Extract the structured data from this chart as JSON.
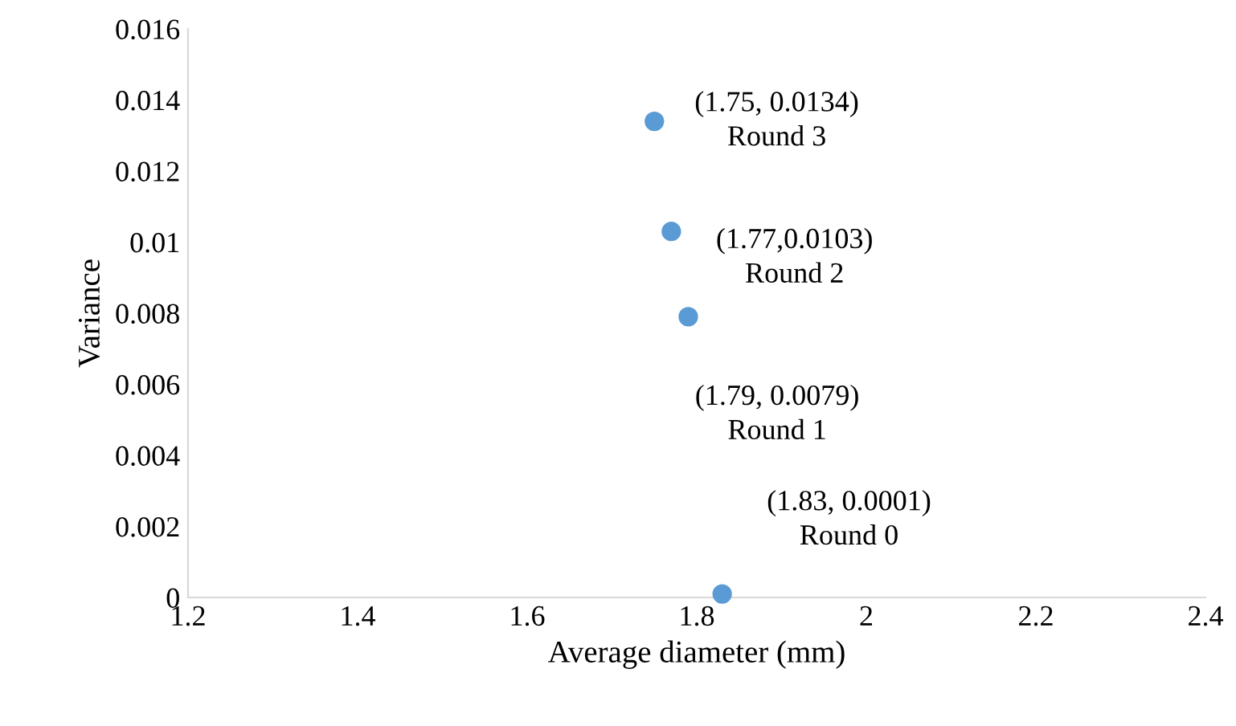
{
  "chart_data": {
    "type": "scatter",
    "xlabel": "Average diameter (mm)",
    "ylabel": "Variance",
    "x": [
      1.75,
      1.77,
      1.79,
      1.83
    ],
    "values": [
      0.0134,
      0.0103,
      0.0079,
      0.0001
    ],
    "color": "#5b9bd5",
    "marker": "circle",
    "grid": false,
    "legend": false,
    "xlim": [
      1.2,
      2.4
    ],
    "xticks": [
      1.2,
      1.4,
      1.6,
      1.8,
      {
        "value": 2,
        "label": "2"
      },
      2.2,
      2.4
    ],
    "ylim": [
      0,
      0.016
    ],
    "yticks": [
      {
        "value": 0,
        "label": "0"
      },
      0.002,
      0.004,
      0.006,
      0.008,
      {
        "value": 0.01,
        "label": "0.01"
      },
      0.012,
      0.014,
      0.016
    ],
    "annotations": [
      {
        "text": "(1.75, 0.0134)\nRound 3",
        "x": 1.75,
        "y": 0.0134
      },
      {
        "text": "(1.77,0.0103)\nRound 2",
        "x": 1.77,
        "y": 0.0103
      },
      {
        "text": "(1.79, 0.0079)\nRound 1",
        "x": 1.79,
        "y": 0.0079
      },
      {
        "text": "(1.83, 0.0001)\nRound 0",
        "x": 1.83,
        "y": 0.0001
      }
    ]
  }
}
